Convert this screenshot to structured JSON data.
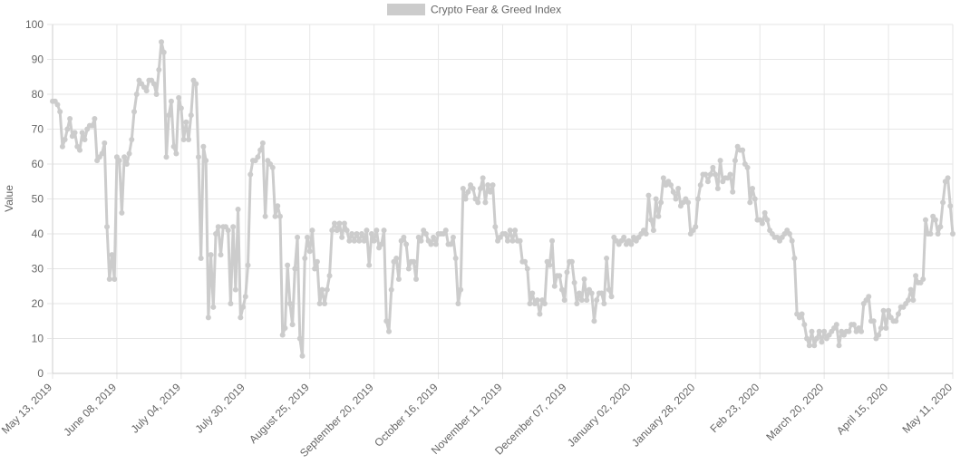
{
  "chart_data": {
    "type": "line",
    "legend": {
      "label": "Crypto Fear & Greed Index",
      "position": "top-center"
    },
    "ylabel": "Value",
    "xlabel": "",
    "ylim": [
      0,
      100
    ],
    "yticks": [
      0,
      10,
      20,
      30,
      40,
      50,
      60,
      70,
      80,
      90,
      100
    ],
    "grid": true,
    "colors": {
      "line": "#cccccc",
      "point": "#cccccc",
      "grid": "#e6e6e6",
      "text": "#666666"
    },
    "x_labels": [
      "May 13, 2019",
      "June 08, 2019",
      "July 04, 2019",
      "July 30, 2019",
      "August 25, 2019",
      "September 20, 2019",
      "October 16, 2019",
      "November 11, 2019",
      "December 07, 2019",
      "January 02, 2020",
      "January 28, 2020",
      "Feb 23, 2020",
      "March 20, 2020",
      "April 15, 2020",
      "May 11, 2020"
    ],
    "series": [
      {
        "name": "Crypto Fear & Greed Index",
        "values": [
          78,
          78,
          77,
          75,
          65,
          67,
          70,
          73,
          68,
          69,
          65,
          64,
          69,
          67,
          70,
          71,
          71,
          73,
          61,
          62,
          63,
          66,
          42,
          27,
          34,
          27,
          62,
          61,
          46,
          62,
          60,
          63,
          67,
          75,
          80,
          84,
          83,
          82,
          81,
          84,
          84,
          83,
          80,
          87,
          95,
          92,
          62,
          74,
          78,
          65,
          63,
          79,
          76,
          67,
          72,
          67,
          74,
          84,
          83,
          62,
          33,
          65,
          61,
          16,
          34,
          19,
          40,
          42,
          34,
          42,
          42,
          41,
          20,
          42,
          24,
          47,
          16,
          19,
          22,
          31,
          57,
          61,
          61,
          62,
          64,
          66,
          45,
          61,
          60,
          59,
          45,
          48,
          45,
          11,
          13,
          31,
          20,
          14,
          30,
          39,
          10,
          5,
          33,
          39,
          35,
          41,
          30,
          32,
          20,
          24,
          20,
          24,
          28,
          41,
          43,
          41,
          43,
          39,
          43,
          41,
          38,
          40,
          38,
          40,
          38,
          40,
          38,
          41,
          31,
          40,
          38,
          41,
          36,
          37,
          41,
          15,
          12,
          24,
          32,
          33,
          27,
          38,
          39,
          37,
          30,
          32,
          32,
          27,
          39,
          38,
          41,
          40,
          38,
          37,
          39,
          37,
          40,
          40,
          40,
          41,
          37,
          37,
          39,
          33,
          20,
          24,
          53,
          50,
          52,
          54,
          53,
          50,
          49,
          53,
          56,
          49,
          54,
          52,
          54,
          42,
          38,
          39,
          40,
          40,
          38,
          41,
          38,
          41,
          38,
          38,
          32,
          32,
          30,
          20,
          23,
          20,
          21,
          17,
          21,
          20,
          32,
          31,
          38,
          25,
          28,
          28,
          24,
          21,
          29,
          32,
          32,
          26,
          20,
          23,
          21,
          27,
          21,
          24,
          23,
          15,
          21,
          23,
          23,
          20,
          33,
          24,
          22,
          39,
          38,
          37,
          38,
          39,
          37,
          38,
          37,
          39,
          38,
          39,
          40,
          41,
          40,
          51,
          44,
          41,
          50,
          45,
          49,
          56,
          54,
          55,
          54,
          52,
          50,
          53,
          48,
          49,
          50,
          49,
          40,
          41,
          42,
          50,
          54,
          57,
          57,
          55,
          57,
          59,
          57,
          53,
          61,
          55,
          56,
          56,
          57,
          52,
          61,
          65,
          64,
          64,
          60,
          59,
          49,
          53,
          50,
          44,
          44,
          43,
          46,
          44,
          41,
          40,
          39,
          39,
          38,
          39,
          40,
          41,
          40,
          38,
          33,
          17,
          16,
          17,
          14,
          10,
          8,
          12,
          8,
          10,
          12,
          9,
          12,
          10,
          11,
          12,
          13,
          14,
          8,
          12,
          11,
          12,
          12,
          14,
          14,
          12,
          13,
          12,
          20,
          21,
          22,
          15,
          15,
          10,
          11,
          13,
          18,
          13,
          18,
          16,
          15,
          15,
          17,
          19,
          19,
          20,
          21,
          24,
          21,
          28,
          26,
          26,
          27,
          44,
          40,
          40,
          45,
          44,
          40,
          42,
          49,
          55,
          56,
          48,
          40
        ]
      }
    ]
  }
}
